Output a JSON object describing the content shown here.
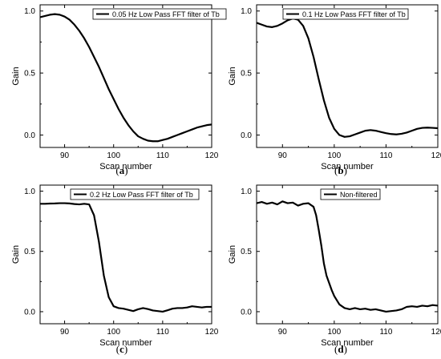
{
  "chart_data": [
    {
      "type": "line",
      "panel_label": "a",
      "xlabel": "Scan number",
      "ylabel": "Gain",
      "xlim": [
        85,
        120
      ],
      "ylim": [
        -0.1,
        1.05
      ],
      "xticks": [
        "90",
        "100",
        "110",
        "120"
      ],
      "yticks": [
        "0.0",
        "0.5",
        "1.0"
      ],
      "grid": false,
      "legend_position": "top-right",
      "series": [
        {
          "name": "0.05 Hz Low Pass FFT filter of Tb",
          "x": [
            85,
            86,
            87,
            88,
            89,
            90,
            91,
            92,
            93,
            94,
            95,
            96,
            97,
            98,
            99,
            100,
            101,
            102,
            103,
            104,
            105,
            106,
            107,
            108,
            109,
            110,
            111,
            112,
            113,
            114,
            115,
            116,
            117,
            118,
            119,
            120
          ],
          "y": [
            0.95,
            0.96,
            0.97,
            0.975,
            0.97,
            0.955,
            0.93,
            0.89,
            0.84,
            0.78,
            0.71,
            0.63,
            0.55,
            0.46,
            0.37,
            0.29,
            0.21,
            0.14,
            0.08,
            0.03,
            -0.01,
            -0.03,
            -0.045,
            -0.05,
            -0.05,
            -0.04,
            -0.03,
            -0.015,
            0.0,
            0.015,
            0.03,
            0.045,
            0.06,
            0.07,
            0.08,
            0.085
          ]
        }
      ]
    },
    {
      "type": "line",
      "panel_label": "b",
      "xlabel": "Scan number",
      "ylabel": "Gain",
      "xlim": [
        85,
        120
      ],
      "ylim": [
        -0.1,
        1.05
      ],
      "xticks": [
        "90",
        "100",
        "110",
        "120"
      ],
      "yticks": [
        "0.0",
        "0.5",
        "1.0"
      ],
      "grid": false,
      "legend_position": "top-right",
      "series": [
        {
          "name": "0.1 Hz Low Pass FFT filter of Tb",
          "x": [
            85,
            86,
            87,
            88,
            89,
            90,
            91,
            92,
            93,
            94,
            95,
            96,
            97,
            98,
            99,
            100,
            101,
            102,
            103,
            104,
            105,
            106,
            107,
            108,
            109,
            110,
            111,
            112,
            113,
            114,
            115,
            116,
            117,
            118,
            119,
            120
          ],
          "y": [
            0.905,
            0.89,
            0.875,
            0.87,
            0.88,
            0.9,
            0.925,
            0.94,
            0.93,
            0.88,
            0.78,
            0.63,
            0.45,
            0.28,
            0.14,
            0.05,
            0.0,
            -0.015,
            -0.01,
            0.005,
            0.02,
            0.035,
            0.04,
            0.035,
            0.025,
            0.015,
            0.008,
            0.005,
            0.01,
            0.02,
            0.035,
            0.05,
            0.058,
            0.06,
            0.058,
            0.055
          ]
        }
      ]
    },
    {
      "type": "line",
      "panel_label": "c",
      "xlabel": "Scan number",
      "ylabel": "Gain",
      "xlim": [
        85,
        120
      ],
      "ylim": [
        -0.1,
        1.05
      ],
      "xticks": [
        "90",
        "100",
        "110",
        "120"
      ],
      "yticks": [
        "0.0",
        "0.5",
        "1.0"
      ],
      "grid": false,
      "legend_position": "top-right",
      "series": [
        {
          "name": "0.2 Hz Low Pass FFT filter of Tb",
          "x": [
            85,
            86,
            87,
            88,
            89,
            90,
            91,
            92,
            93,
            94,
            95,
            96,
            97,
            98,
            99,
            100,
            101,
            102,
            103,
            104,
            105,
            106,
            107,
            108,
            109,
            110,
            111,
            112,
            113,
            114,
            115,
            116,
            117,
            118,
            119,
            120
          ],
          "y": [
            0.895,
            0.895,
            0.897,
            0.898,
            0.9,
            0.9,
            0.898,
            0.893,
            0.89,
            0.895,
            0.89,
            0.8,
            0.58,
            0.3,
            0.12,
            0.045,
            0.03,
            0.025,
            0.015,
            0.005,
            0.02,
            0.03,
            0.022,
            0.01,
            0.005,
            0.0,
            0.012,
            0.025,
            0.03,
            0.03,
            0.035,
            0.045,
            0.04,
            0.035,
            0.04,
            0.04
          ]
        }
      ]
    },
    {
      "type": "line",
      "panel_label": "d",
      "xlabel": "Scan number",
      "ylabel": "Gain",
      "xlim": [
        85,
        120
      ],
      "ylim": [
        -0.1,
        1.05
      ],
      "xticks": [
        "90",
        "100",
        "110",
        "120"
      ],
      "yticks": [
        "0.0",
        "0.5",
        "1.0"
      ],
      "grid": false,
      "legend_position": "top-right",
      "series": [
        {
          "name": "Non-filtered",
          "x": [
            85,
            86,
            87,
            88,
            89,
            90,
            91,
            92,
            93,
            94,
            95,
            96,
            96.5,
            97,
            97.5,
            98,
            98.5,
            99,
            99.5,
            100,
            101,
            102,
            103,
            104,
            105,
            106,
            107,
            108,
            109,
            110,
            111,
            112,
            113,
            114,
            115,
            116,
            117,
            118,
            119,
            120
          ],
          "y": [
            0.9,
            0.91,
            0.895,
            0.905,
            0.89,
            0.915,
            0.9,
            0.905,
            0.88,
            0.895,
            0.9,
            0.87,
            0.8,
            0.68,
            0.55,
            0.4,
            0.3,
            0.24,
            0.18,
            0.13,
            0.06,
            0.03,
            0.02,
            0.03,
            0.02,
            0.025,
            0.015,
            0.02,
            0.01,
            0.0,
            0.005,
            0.01,
            0.02,
            0.04,
            0.045,
            0.04,
            0.05,
            0.045,
            0.055,
            0.05
          ]
        }
      ]
    }
  ]
}
